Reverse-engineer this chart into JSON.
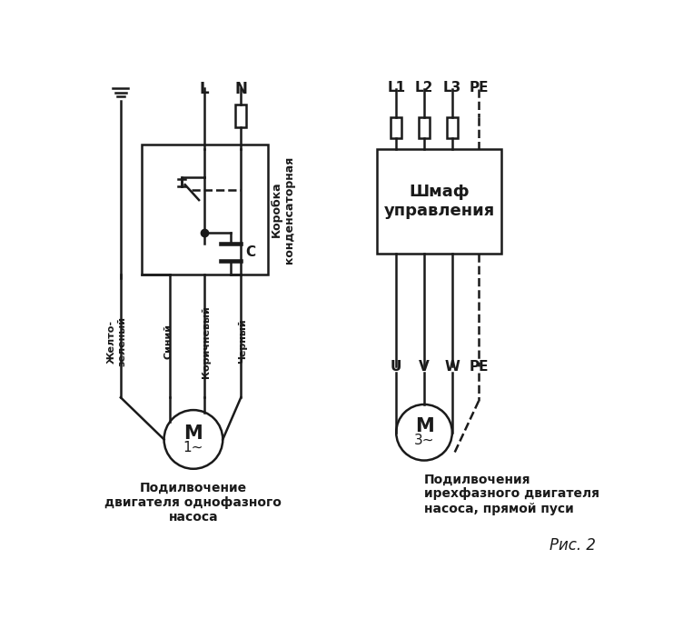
{
  "bg_color": "#ffffff",
  "line_color": "#1a1a1a",
  "line_width": 1.8,
  "title_bottom": "Рис. 2",
  "left_caption_line1": "Подилвочение",
  "left_caption_line2": "двигателя однофазного",
  "left_caption_line3": "насоса",
  "right_caption_line1": "Подилвочения",
  "right_caption_line2": "ирехфазного двигателя",
  "right_caption_line3": "насоса, прямой пуси",
  "left_labels": [
    "Желто-\nзеленый",
    "Синий",
    "Коричневый",
    "Черный"
  ],
  "right_top_labels": [
    "L1",
    "L2",
    "L3",
    "PE"
  ],
  "right_bottom_labels": [
    "U",
    "V",
    "W",
    "PE"
  ],
  "box_label": "Коробка\nконденсаторная",
  "cabinet_label": "Шмаф\nуправления",
  "L_label": "L",
  "N_label": "N"
}
